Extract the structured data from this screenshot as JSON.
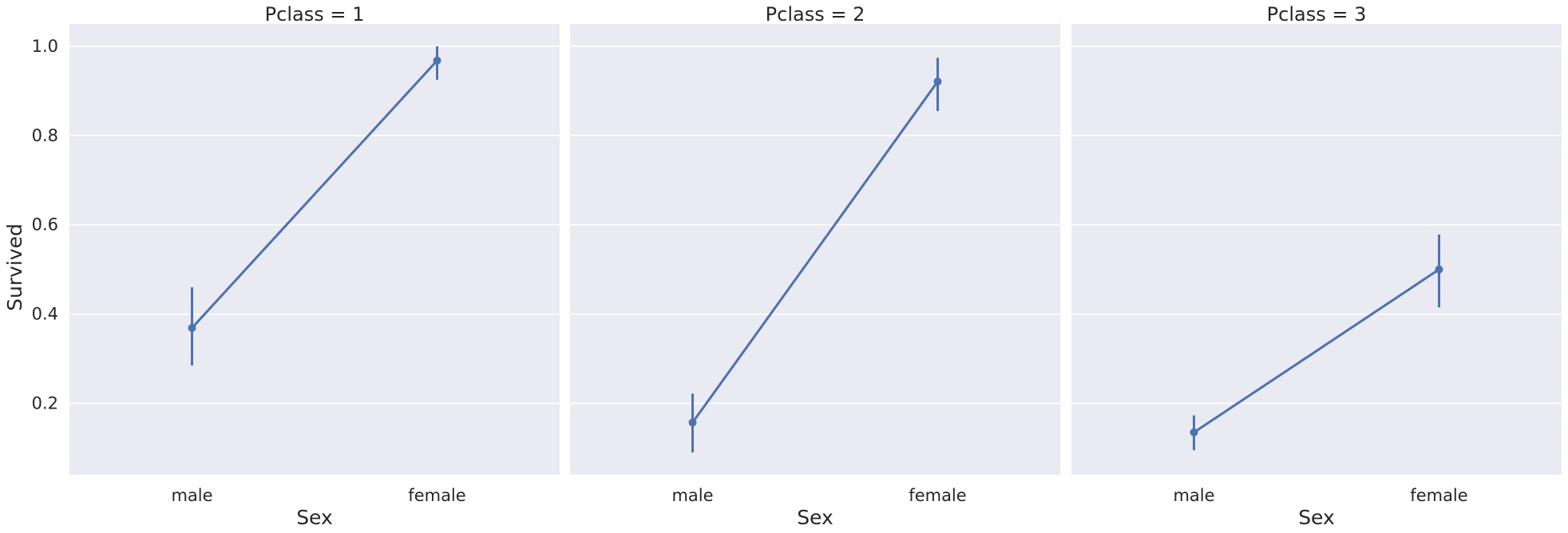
{
  "chart_data": {
    "type": "line",
    "kind": "point plot with error bars",
    "facet_variable": "Pclass",
    "ylabel": "Survived",
    "ylim": [
      0.04,
      1.05
    ],
    "yticks": [
      0.2,
      0.4,
      0.6,
      0.8,
      1.0
    ],
    "ytick_labels": [
      "0.2",
      "0.4",
      "0.6",
      "0.8",
      "1.0"
    ],
    "grid": true,
    "series_color": "#4c72b0",
    "panels": [
      {
        "title": "Pclass = 1",
        "xlabel": "Sex",
        "categories": [
          "male",
          "female"
        ],
        "values": [
          0.369,
          0.968
        ],
        "ci_low": [
          0.285,
          0.925
        ],
        "ci_high": [
          0.46,
          1.0
        ]
      },
      {
        "title": "Pclass = 2",
        "xlabel": "Sex",
        "categories": [
          "male",
          "female"
        ],
        "values": [
          0.157,
          0.921
        ],
        "ci_low": [
          0.09,
          0.855
        ],
        "ci_high": [
          0.222,
          0.974
        ]
      },
      {
        "title": "Pclass = 3",
        "xlabel": "Sex",
        "categories": [
          "male",
          "female"
        ],
        "values": [
          0.135,
          0.5
        ],
        "ci_low": [
          0.095,
          0.415
        ],
        "ci_high": [
          0.173,
          0.578
        ]
      }
    ]
  }
}
